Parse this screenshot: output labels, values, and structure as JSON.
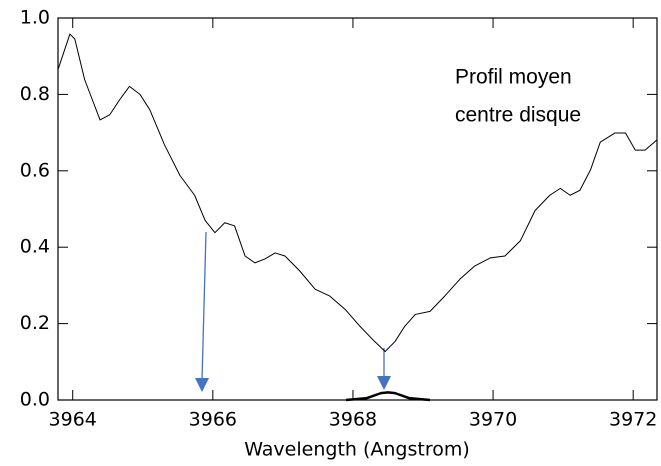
{
  "chart_data": {
    "type": "line",
    "xlabel": "Wavelength (Angstrom)",
    "annotations": [
      "Profil moyen",
      "centre disque"
    ],
    "xlim": [
      3963.79,
      3972.34
    ],
    "xticks": [
      3964,
      3966,
      3968,
      3970,
      3972
    ],
    "ylim": [
      0,
      1
    ],
    "yticks": [
      {
        "value": 0,
        "label": "0.0"
      },
      0.2,
      0.4,
      0.6,
      0.8,
      {
        "value": 1,
        "label": "1.0"
      }
    ],
    "series": [
      {
        "color": "#000000",
        "width": 1,
        "x": [
          3963.79,
          3963.96,
          3964.03,
          3964.17,
          3964.39,
          3964.53,
          3964.67,
          3964.81,
          3964.96,
          3965.1,
          3965.31,
          3965.53,
          3965.74,
          3965.89,
          3966.03,
          3966.17,
          3966.31,
          3966.46,
          3966.6,
          3966.74,
          3966.89,
          3967.03,
          3967.24,
          3967.46,
          3967.67,
          3967.89,
          3968.1,
          3968.31,
          3968.46,
          3968.6,
          3968.74,
          3968.89,
          3969.1,
          3969.31,
          3969.53,
          3969.74,
          3969.96,
          3970.17,
          3970.39,
          3970.6,
          3970.81,
          3970.96,
          3971.1,
          3971.24,
          3971.39,
          3971.53,
          3971.74,
          3971.89,
          3972.03,
          3972.17,
          3972.34
        ],
        "values": [
          0.865,
          0.958,
          0.945,
          0.839,
          0.733,
          0.747,
          0.786,
          0.821,
          0.8,
          0.76,
          0.668,
          0.588,
          0.536,
          0.47,
          0.438,
          0.464,
          0.456,
          0.377,
          0.359,
          0.369,
          0.385,
          0.377,
          0.338,
          0.29,
          0.272,
          0.237,
          0.193,
          0.153,
          0.127,
          0.153,
          0.193,
          0.224,
          0.232,
          0.272,
          0.317,
          0.351,
          0.372,
          0.377,
          0.417,
          0.496,
          0.536,
          0.554,
          0.536,
          0.549,
          0.602,
          0.675,
          0.699,
          0.699,
          0.654,
          0.654,
          0.681
        ]
      },
      {
        "color": "#000000",
        "width": 2.5,
        "x": [
          3967.9,
          3968.2,
          3968.4,
          3968.5,
          3968.6,
          3968.8,
          3969.1
        ],
        "values": [
          0,
          0.005,
          0.018,
          0.02,
          0.018,
          0.005,
          0
        ]
      }
    ]
  }
}
